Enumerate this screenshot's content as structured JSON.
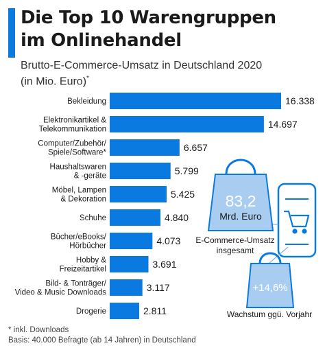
{
  "header": {
    "title_line1": "Die Top 10 Warengruppen",
    "title_line2": "im Onlinehandel",
    "subtitle_line1": "Brutto-E-Commerce-Umsatz in Deutschland 2020",
    "subtitle_line2": "(in Mio. Euro)",
    "subtitle_mark": "*"
  },
  "chart_data": {
    "type": "bar",
    "orientation": "horizontal",
    "categories": [
      [
        "Bekleidung"
      ],
      [
        "Elektronikartikel &",
        "Telekommunikation"
      ],
      [
        "Computer/Zubehör/",
        "Spiele/Software*"
      ],
      [
        "Haushaltswaren",
        "& -geräte"
      ],
      [
        "Möbel, Lampen",
        "& Dekoration"
      ],
      [
        "Schuhe"
      ],
      [
        "Bücher/eBooks/",
        "Hörbücher"
      ],
      [
        "Hobby &",
        "Freizeitartikel"
      ],
      [
        "Bild- & Tonträger/",
        "Video & Music Downloads"
      ],
      [
        "Drogerie"
      ]
    ],
    "values": [
      16338,
      14697,
      6657,
      5799,
      5425,
      4840,
      4073,
      3691,
      3117,
      2811
    ],
    "value_labels": [
      "16.338",
      "14.697",
      "6.657",
      "5.799",
      "5.425",
      "4.840",
      "4.073",
      "3.691",
      "3.117",
      "2.811"
    ],
    "xlim": [
      0,
      16338
    ],
    "grid": false,
    "bar_color": "#0a7ae0"
  },
  "illustration": {
    "bag_value": "83,2",
    "bag_unit": "Mrd. Euro",
    "bag_caption_line1": "E-Commerce-Umsatz",
    "bag_caption_line2": "insgesamt",
    "growth_value": "+14,6%",
    "growth_caption": "Wachstum ggü. Vorjahr",
    "icon_names": [
      "shopping-bag-icon",
      "smartphone-icon",
      "shopping-cart-icon"
    ],
    "colors": {
      "bag_fill": "#a9cdf0",
      "bag_stroke": "#0a7ae0"
    }
  },
  "footer": {
    "note": "* inkl. Downloads",
    "basis": "Basis: 40.000 Befragte (ab 14 Jahren) in Deutschland"
  }
}
